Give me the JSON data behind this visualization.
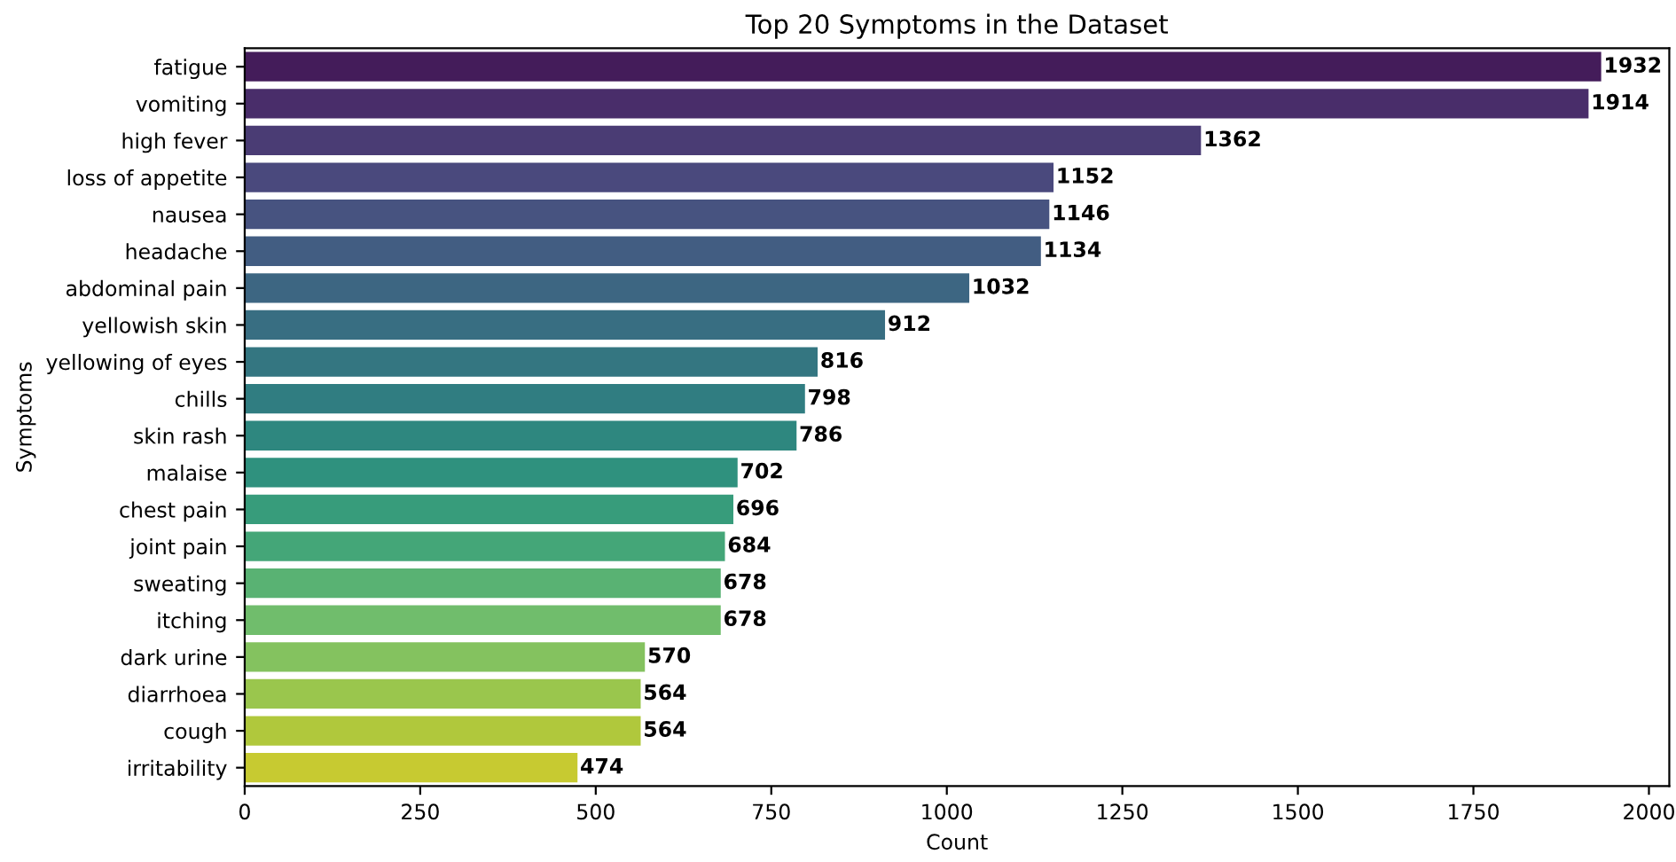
{
  "chart_data": {
    "type": "bar",
    "orientation": "horizontal",
    "title": "Top 20 Symptoms in the Dataset",
    "xlabel": "Count",
    "ylabel": "Symptoms",
    "categories": [
      "fatigue",
      "vomiting",
      "high fever",
      "loss of appetite",
      "nausea",
      "headache",
      "abdominal pain",
      "yellowish skin",
      "yellowing of eyes",
      "chills",
      "skin rash",
      "malaise",
      "chest pain",
      "joint pain",
      "sweating",
      "itching",
      "dark urine",
      "diarrhoea",
      "cough",
      "irritability"
    ],
    "values": [
      1932,
      1914,
      1362,
      1152,
      1146,
      1134,
      1032,
      912,
      816,
      798,
      786,
      702,
      696,
      684,
      678,
      678,
      570,
      564,
      564,
      474
    ],
    "colors": [
      "#441c5a",
      "#492d6a",
      "#4a3c74",
      "#4a497d",
      "#475380",
      "#425d82",
      "#3d6682",
      "#386e82",
      "#347681",
      "#307d81",
      "#2e877f",
      "#2f917e",
      "#379c7b",
      "#44a678",
      "#59b273",
      "#70bd6c",
      "#84c25f",
      "#9ac64d",
      "#b0c83c",
      "#c7ca31"
    ],
    "xlim": [
      0,
      2029
    ],
    "xticks": [
      0,
      250,
      500,
      750,
      1000,
      1250,
      1500,
      1750,
      2000
    ],
    "data_labels": true
  }
}
